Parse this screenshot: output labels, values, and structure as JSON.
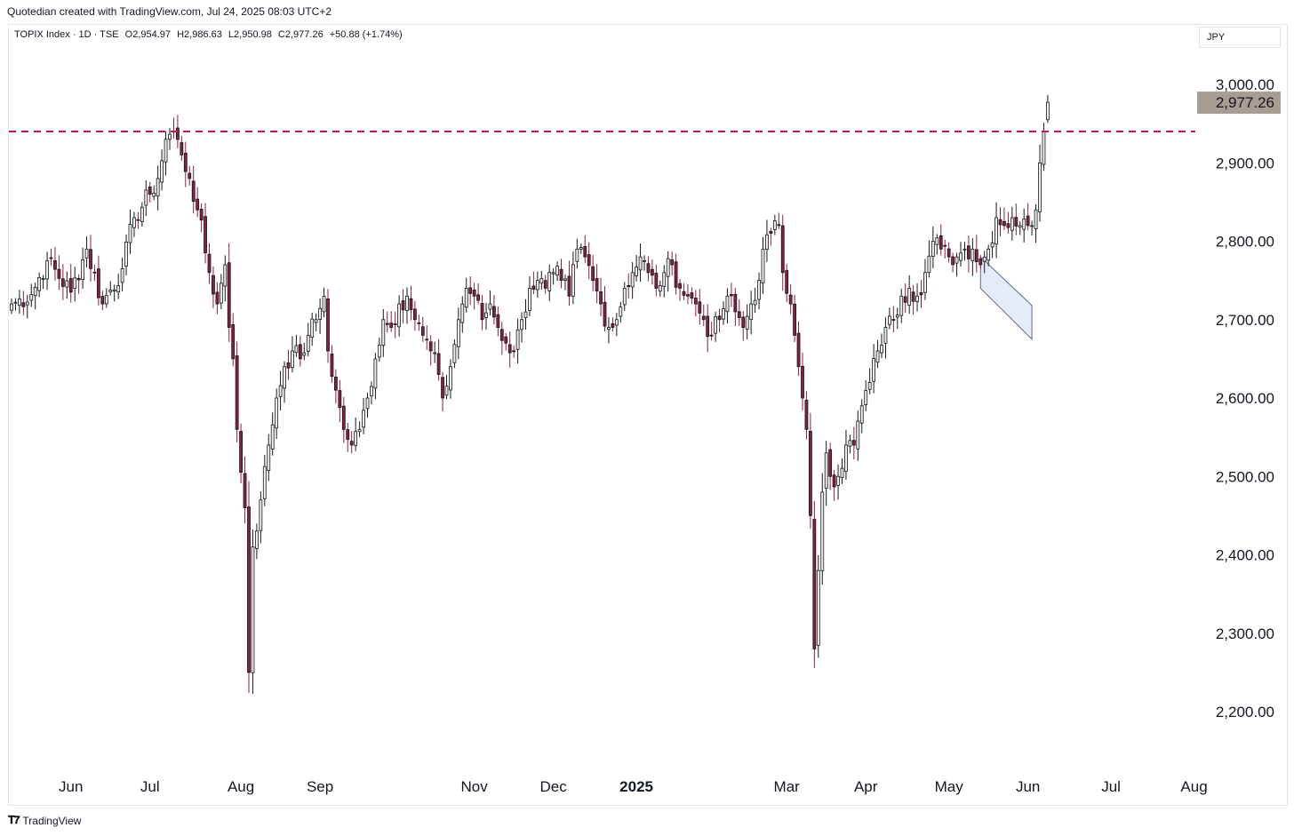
{
  "caption": "Quotedian created with TradingView.com, Jul 24, 2025 08:03 UTC+2",
  "legend": {
    "symbol": "TOPIX Index · 1D · TSE",
    "open": "O2,954.97",
    "high": "H2,986.63",
    "low": "L2,950.98",
    "close": "C2,977.26",
    "change": "+50.88 (+1.74%)"
  },
  "currency": "JPY",
  "brand": "TradingView",
  "colors": {
    "up": "#f0ede6",
    "down": "#8b1f3c",
    "wick_up": "#131722",
    "outline": "#131722",
    "resistance": "#c2185b",
    "price_tag": "#a89d93",
    "channel": "#e3ecf8"
  },
  "chart_data": {
    "type": "candlestick",
    "title": "",
    "xlabel": "",
    "ylabel": "",
    "ylim": [
      2180,
      3020
    ],
    "y_ticks": [
      "2,200.00",
      "2,300.00",
      "2,400.00",
      "2,500.00",
      "2,600.00",
      "2,700.00",
      "2,800.00",
      "2,900.00",
      "3,000.00"
    ],
    "x_ticks": [
      {
        "label": "Jun",
        "index": 15,
        "bold": false
      },
      {
        "label": "Jul",
        "index": 35,
        "bold": false
      },
      {
        "label": "Aug",
        "index": 58,
        "bold": false
      },
      {
        "label": "Sep",
        "index": 78,
        "bold": false
      },
      {
        "label": "Nov",
        "index": 117,
        "bold": false
      },
      {
        "label": "Dec",
        "index": 137,
        "bold": false
      },
      {
        "label": "2025",
        "index": 158,
        "bold": true
      },
      {
        "label": "Mar",
        "index": 196,
        "bold": false
      },
      {
        "label": "Apr",
        "index": 216,
        "bold": false
      },
      {
        "label": "May",
        "index": 237,
        "bold": false
      },
      {
        "label": "Jun",
        "index": 257,
        "bold": false
      },
      {
        "label": "Jul",
        "index": 278,
        "bold": false
      },
      {
        "label": "Aug",
        "index": 299,
        "bold": false
      }
    ],
    "last_price": 2977.26,
    "last_price_label": "2,977.26",
    "resistance": 2940,
    "channel": {
      "from_index": 245,
      "to_index": 258,
      "upper": [
        2780,
        2718
      ],
      "lower": [
        2740,
        2675
      ]
    },
    "series": [
      {
        "close_path": [
          [
            0,
            2720
          ],
          [
            5,
            2732
          ],
          [
            9,
            2775
          ],
          [
            15,
            2735
          ],
          [
            19,
            2790
          ],
          [
            23,
            2720
          ],
          [
            28,
            2765
          ],
          [
            31,
            2830
          ],
          [
            35,
            2860
          ],
          [
            37,
            2880
          ],
          [
            39,
            2930
          ],
          [
            41,
            2940
          ],
          [
            43,
            2910
          ],
          [
            45,
            2880
          ],
          [
            47,
            2840
          ],
          [
            50,
            2760
          ],
          [
            52,
            2720
          ],
          [
            54,
            2770
          ],
          [
            55,
            2690
          ],
          [
            56,
            2650
          ],
          [
            57,
            2560
          ],
          [
            59,
            2460
          ],
          [
            60,
            2250
          ],
          [
            61,
            2410
          ],
          [
            63,
            2470
          ],
          [
            65,
            2540
          ],
          [
            67,
            2600
          ],
          [
            69,
            2640
          ],
          [
            71,
            2660
          ],
          [
            73,
            2650
          ],
          [
            75,
            2680
          ],
          [
            77,
            2700
          ],
          [
            79,
            2730
          ],
          [
            80,
            2660
          ],
          [
            82,
            2610
          ],
          [
            84,
            2560
          ],
          [
            86,
            2540
          ],
          [
            88,
            2560
          ],
          [
            90,
            2600
          ],
          [
            92,
            2650
          ],
          [
            94,
            2700
          ],
          [
            96,
            2690
          ],
          [
            98,
            2720
          ],
          [
            100,
            2730
          ],
          [
            102,
            2700
          ],
          [
            104,
            2680
          ],
          [
            106,
            2660
          ],
          [
            108,
            2630
          ],
          [
            109,
            2600
          ],
          [
            111,
            2640
          ],
          [
            113,
            2700
          ],
          [
            115,
            2740
          ],
          [
            117,
            2730
          ],
          [
            119,
            2700
          ],
          [
            121,
            2720
          ],
          [
            123,
            2690
          ],
          [
            125,
            2670
          ],
          [
            127,
            2660
          ],
          [
            129,
            2700
          ],
          [
            131,
            2740
          ],
          [
            133,
            2750
          ],
          [
            135,
            2740
          ],
          [
            137,
            2760
          ],
          [
            139,
            2750
          ],
          [
            141,
            2730
          ],
          [
            143,
            2790
          ],
          [
            145,
            2780
          ],
          [
            147,
            2750
          ],
          [
            149,
            2720
          ],
          [
            151,
            2690
          ],
          [
            153,
            2700
          ],
          [
            155,
            2740
          ],
          [
            157,
            2760
          ],
          [
            159,
            2780
          ],
          [
            161,
            2760
          ],
          [
            163,
            2740
          ],
          [
            165,
            2760
          ],
          [
            167,
            2770
          ],
          [
            169,
            2740
          ],
          [
            171,
            2730
          ],
          [
            173,
            2720
          ],
          [
            175,
            2700
          ],
          [
            177,
            2680
          ],
          [
            179,
            2700
          ],
          [
            181,
            2730
          ],
          [
            183,
            2710
          ],
          [
            185,
            2690
          ],
          [
            187,
            2720
          ],
          [
            189,
            2750
          ],
          [
            190,
            2790
          ],
          [
            192,
            2810
          ],
          [
            194,
            2820
          ],
          [
            195,
            2760
          ],
          [
            197,
            2720
          ],
          [
            198,
            2680
          ],
          [
            199,
            2640
          ],
          [
            200,
            2600
          ],
          [
            201,
            2560
          ],
          [
            202,
            2450
          ],
          [
            203,
            2280
          ],
          [
            204,
            2380
          ],
          [
            205,
            2480
          ],
          [
            206,
            2530
          ],
          [
            207,
            2500
          ],
          [
            209,
            2500
          ],
          [
            211,
            2540
          ],
          [
            213,
            2540
          ],
          [
            215,
            2590
          ],
          [
            217,
            2620
          ],
          [
            219,
            2660
          ],
          [
            221,
            2690
          ],
          [
            223,
            2700
          ],
          [
            225,
            2730
          ],
          [
            227,
            2740
          ],
          [
            229,
            2730
          ],
          [
            231,
            2760
          ],
          [
            233,
            2800
          ],
          [
            235,
            2790
          ],
          [
            237,
            2780
          ],
          [
            239,
            2780
          ],
          [
            241,
            2790
          ],
          [
            243,
            2790
          ],
          [
            245,
            2770
          ],
          [
            247,
            2790
          ],
          [
            249,
            2830
          ],
          [
            251,
            2820
          ],
          [
            253,
            2830
          ],
          [
            255,
            2820
          ],
          [
            257,
            2820
          ],
          [
            259,
            2840
          ],
          [
            260,
            2900
          ],
          [
            261,
            2940
          ],
          [
            262,
            2977
          ]
        ]
      }
    ]
  }
}
